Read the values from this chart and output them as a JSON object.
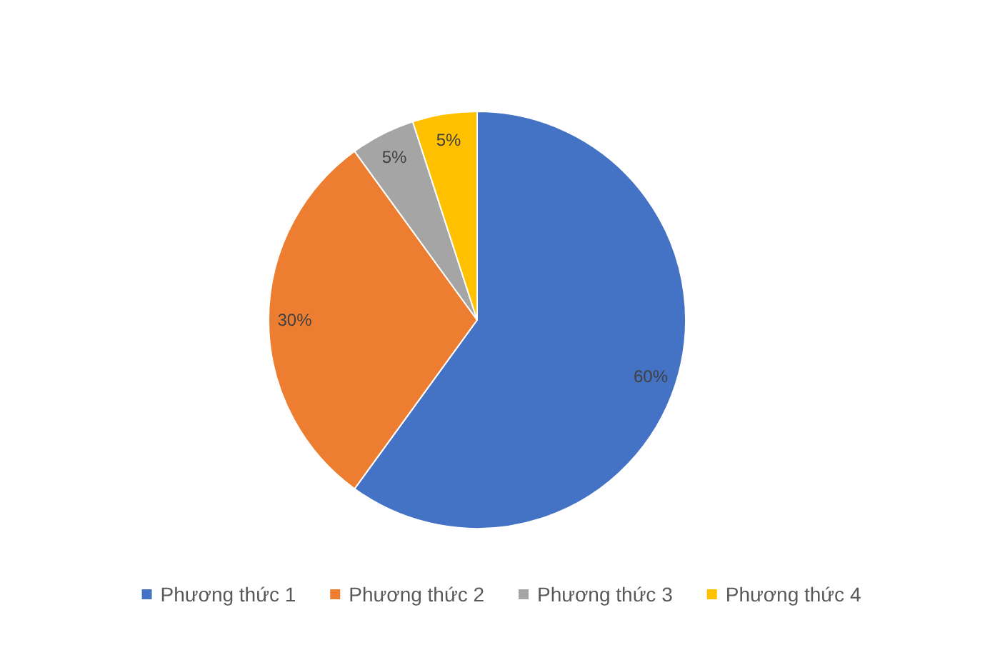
{
  "chart_data": {
    "type": "pie",
    "categories": [
      "Phương thức 1",
      "Phương thức 2",
      "Phương thức 3",
      "Phương thức 4"
    ],
    "values": [
      60,
      30,
      5,
      5
    ],
    "colors": [
      "#4472c4",
      "#ed7d31",
      "#a5a5a5",
      "#ffc000"
    ],
    "value_labels": [
      "60%",
      "30%",
      "5%",
      "5%"
    ],
    "legend": "bottom"
  }
}
